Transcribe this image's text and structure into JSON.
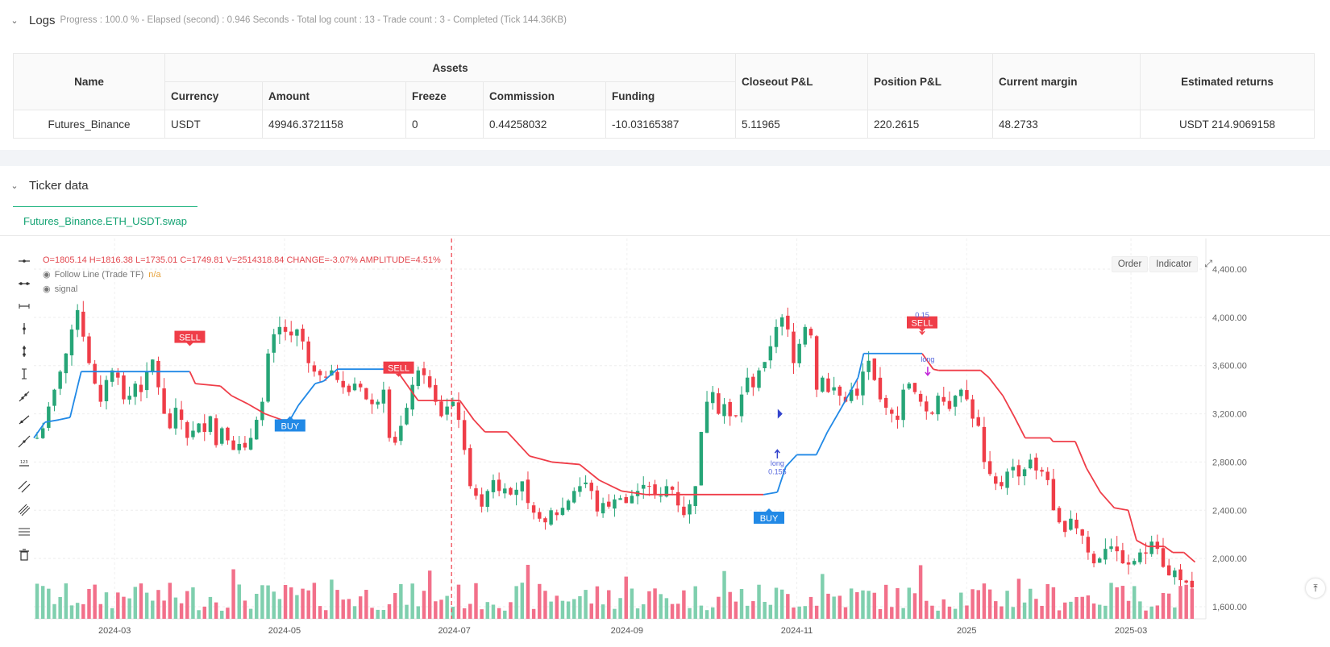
{
  "logs": {
    "title": "Logs",
    "status": "Progress : 100.0 % - Elapsed (second) : 0.946  Seconds - Total log count : 13 - Trade count : 3 - Completed (Tick 144.36KB)"
  },
  "assets_table": {
    "headers": {
      "name": "Name",
      "assets": "Assets",
      "currency": "Currency",
      "amount": "Amount",
      "freeze": "Freeze",
      "commission": "Commission",
      "funding": "Funding",
      "closeout_pnl": "Closeout P&L",
      "position_pnl": "Position P&L",
      "current_margin": "Current margin",
      "estimated_returns": "Estimated returns"
    },
    "row": {
      "name": "Futures_Binance",
      "currency": "USDT",
      "amount": "49946.3721158",
      "freeze": "0",
      "commission": "0.44258032",
      "funding": "-10.03165387",
      "closeout_pnl": "5.11965",
      "position_pnl": "220.2615",
      "current_margin": "48.2733",
      "estimated_returns": "USDT 214.9069158"
    }
  },
  "ticker": {
    "title": "Ticker data",
    "tab": "Futures_Binance.ETH_USDT.swap"
  },
  "legend": {
    "ohlc": "O=1805.14 H=1816.38 L=1735.01 C=1749.81 V=2514318.84 CHANGE=-3.07% AMPLITUDE=4.51%",
    "series1_name": "Follow Line (Trade TF)",
    "series1_value": "n/a",
    "series2_name": "signal"
  },
  "chart_buttons": {
    "order": "Order",
    "indicator": "Indicator"
  },
  "chart_data": {
    "type": "candlestick",
    "y_axis_labels": [
      "4,400.00",
      "4,000.00",
      "3,600.00",
      "3,200.00",
      "2,800.00",
      "2,400.00",
      "2,000.00",
      "1,600.00"
    ],
    "y_axis_values": [
      4400,
      4000,
      3600,
      3200,
      2800,
      2400,
      2000,
      1600
    ],
    "x_axis_labels": [
      "2024-03",
      "2024-05",
      "2024-07",
      "2024-09",
      "2024-11",
      "2025",
      "2025-03"
    ],
    "x_range": [
      "2024-02-01",
      "2025-03-25"
    ],
    "price_range": [
      1560,
      4500
    ],
    "follow_line": [
      {
        "date": "2024-02-01",
        "v": 3000
      },
      {
        "date": "2024-02-05",
        "v": 3130
      },
      {
        "date": "2024-02-10",
        "v": 3150
      },
      {
        "date": "2024-02-14",
        "v": 3170
      },
      {
        "date": "2024-02-18",
        "v": 3550
      },
      {
        "date": "2024-03-28",
        "v": 3550
      },
      {
        "date": "2024-03-30",
        "v": 3450
      },
      {
        "date": "2024-04-08",
        "v": 3430
      },
      {
        "date": "2024-04-12",
        "v": 3350
      },
      {
        "date": "2024-04-18",
        "v": 3280
      },
      {
        "date": "2024-04-24",
        "v": 3200
      },
      {
        "date": "2024-04-30",
        "v": 3150
      },
      {
        "date": "2024-05-03",
        "v": 3150
      },
      {
        "date": "2024-05-06",
        "v": 3270
      },
      {
        "date": "2024-05-12",
        "v": 3450
      },
      {
        "date": "2024-05-15",
        "v": 3470
      },
      {
        "date": "2024-05-20",
        "v": 3570
      },
      {
        "date": "2024-06-10",
        "v": 3570
      },
      {
        "date": "2024-06-14",
        "v": 3440
      },
      {
        "date": "2024-06-18",
        "v": 3310
      },
      {
        "date": "2024-07-03",
        "v": 3310
      },
      {
        "date": "2024-07-08",
        "v": 3150
      },
      {
        "date": "2024-07-12",
        "v": 3050
      },
      {
        "date": "2024-07-20",
        "v": 3050
      },
      {
        "date": "2024-07-28",
        "v": 2850
      },
      {
        "date": "2024-08-05",
        "v": 2800
      },
      {
        "date": "2024-08-15",
        "v": 2780
      },
      {
        "date": "2024-08-22",
        "v": 2650
      },
      {
        "date": "2024-08-30",
        "v": 2560
      },
      {
        "date": "2024-09-08",
        "v": 2530
      },
      {
        "date": "2024-10-20",
        "v": 2530
      },
      {
        "date": "2024-10-25",
        "v": 2550
      },
      {
        "date": "2024-10-28",
        "v": 2760
      },
      {
        "date": "2024-11-01",
        "v": 2860
      },
      {
        "date": "2024-11-08",
        "v": 2860
      },
      {
        "date": "2024-11-12",
        "v": 3050
      },
      {
        "date": "2024-11-17",
        "v": 3250
      },
      {
        "date": "2024-11-23",
        "v": 3500
      },
      {
        "date": "2024-11-25",
        "v": 3700
      },
      {
        "date": "2024-12-16",
        "v": 3700
      },
      {
        "date": "2024-12-20",
        "v": 3570
      },
      {
        "date": "2024-12-22",
        "v": 3560
      },
      {
        "date": "2025-01-06",
        "v": 3560
      },
      {
        "date": "2025-01-09",
        "v": 3500
      },
      {
        "date": "2025-01-14",
        "v": 3350
      },
      {
        "date": "2025-01-18",
        "v": 3180
      },
      {
        "date": "2025-01-22",
        "v": 3000
      },
      {
        "date": "2025-01-31",
        "v": 3000
      },
      {
        "date": "2025-02-01",
        "v": 2970
      },
      {
        "date": "2025-02-09",
        "v": 2970
      },
      {
        "date": "2025-02-13",
        "v": 2750
      },
      {
        "date": "2025-02-18",
        "v": 2550
      },
      {
        "date": "2025-02-23",
        "v": 2420
      },
      {
        "date": "2025-02-28",
        "v": 2400
      },
      {
        "date": "2025-03-03",
        "v": 2150
      },
      {
        "date": "2025-03-07",
        "v": 2100
      },
      {
        "date": "2025-03-13",
        "v": 2100
      },
      {
        "date": "2025-03-16",
        "v": 2050
      },
      {
        "date": "2025-03-20",
        "v": 2050
      },
      {
        "date": "2025-03-24",
        "v": 1970
      }
    ],
    "line_colors": {
      "up": "#2189e6",
      "down": "#ef3d48"
    },
    "signals": [
      {
        "label": "SELL",
        "date": "2024-03-28",
        "price": 3835,
        "color": "#ef3d48"
      },
      {
        "label": "BUY",
        "date": "2024-05-03",
        "price": 3100,
        "color": "#2189e6"
      },
      {
        "label": "SELL",
        "date": "2024-06-11",
        "price": 3580,
        "color": "#ef3d48"
      },
      {
        "label": "BUY",
        "date": "2024-10-22",
        "price": 2335,
        "color": "#2189e6"
      },
      {
        "label": "SELL",
        "date": "2024-12-16",
        "price": 3955,
        "color": "#ef3d48"
      }
    ],
    "trade_marks": [
      {
        "text": "long",
        "date": "2024-10-25",
        "price": 2770
      },
      {
        "text": "0.155",
        "date": "2024-10-25",
        "price": 2700
      },
      {
        "text": "0.15",
        "date": "2024-12-16",
        "price": 4000
      },
      {
        "text": "long",
        "date": "2024-12-18",
        "price": 3630
      }
    ],
    "colors": {
      "up": "#26a577",
      "down": "#ef3d48",
      "vol_up": "#7fcfae",
      "vol_down": "#f2708a",
      "crosshair": "#ef3d48"
    },
    "crosshair_date": "2024-06-30",
    "candles_seed": [
      3000,
      3080,
      3260,
      3400,
      3550,
      3700,
      3900,
      4060,
      3840,
      3620,
      3450,
      3300,
      3480,
      3560,
      3500,
      3320,
      3350,
      3450,
      3380,
      3550,
      3650,
      3420,
      3200,
      3080,
      3250,
      3150,
      3000,
      3060,
      3120,
      3050,
      3180,
      2940,
      3080,
      2980,
      2900,
      2950,
      2920,
      3000,
      3150,
      3300,
      3700,
      3860,
      3920,
      3880,
      3850,
      3900,
      3800,
      3620,
      3550,
      3520,
      3500,
      3560,
      3480,
      3420,
      3380,
      3450,
      3420,
      3320,
      3280,
      3300,
      3400,
      3000,
      2960,
      3100,
      3250,
      3440,
      3560,
      3520,
      3420,
      3300,
      3180,
      3260,
      3300,
      3150,
      2900,
      2600,
      2520,
      2430,
      2560,
      2650,
      2560,
      2580,
      2530,
      2570,
      2640,
      2460,
      2380,
      2330,
      2300,
      2400,
      2360,
      2420,
      2480,
      2560,
      2600,
      2630,
      2560,
      2390,
      2460,
      2430,
      2490,
      2500,
      2460,
      2520,
      2560,
      2610,
      2600,
      2530,
      2520,
      2600,
      2570,
      2440,
      2360,
      2450,
      2600,
      3050,
      3300,
      3380,
      3200,
      3280,
      3180,
      3180,
      3360,
      3500,
      3420,
      3560,
      3630,
      3760,
      3920,
      4000,
      3900,
      3620,
      3780,
      3920,
      3850,
      3400,
      3500,
      3380,
      3420,
      3350,
      3300,
      3400,
      3350,
      3550,
      3640,
      3480,
      3320,
      3250,
      3200,
      3150,
      3400,
      3450,
      3380,
      3300,
      3220,
      3200,
      3350,
      3300,
      3240,
      3350,
      3400,
      3320,
      3160,
      3100,
      2800,
      2700,
      2620,
      2600,
      2720,
      2760,
      2680,
      2740,
      2820,
      2730,
      2720,
      2650,
      2400,
      2300,
      2220,
      2330,
      2250,
      2190,
      2050,
      1960,
      2000,
      2080,
      2100,
      2060,
      1960,
      1950,
      1980,
      2050,
      2040,
      2140,
      2080,
      1930,
      1860,
      1900,
      1820,
      1800,
      1760
    ]
  }
}
